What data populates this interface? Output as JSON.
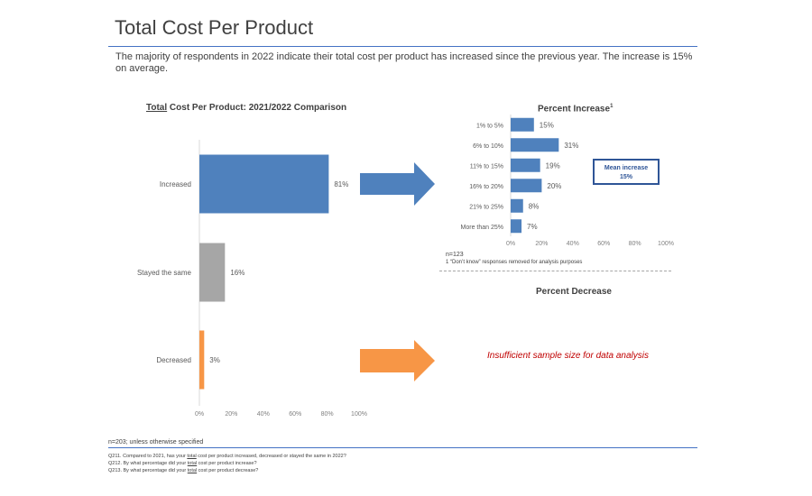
{
  "title": "Total Cost Per Product",
  "subtitle": "The majority of respondents in 2022 indicate their total cost per product has increased since the previous year.  The increase is 15% on average.",
  "left_chart_title_underlined": "Total",
  "left_chart_title_rest": " Cost Per Product: 2021/2022 Comparison",
  "percent_increase_title": "Percent Increase",
  "percent_increase_sup": "1",
  "mean_increase_line1": "Mean increase",
  "mean_increase_line2": "15%",
  "n_increase": "n=123",
  "footnote_increase": "1 “Don’t know” responses removed for analysis purposes",
  "percent_decrease_title": "Percent Decrease",
  "insufficient": "Insufficient sample size for data analysis",
  "n_total": "n=203; unless otherwise specified",
  "q211_a": "Q211. Compared to 2021, has your ",
  "q211_u": "total",
  "q211_b": " cost per product increased, decreased or stayed the same in 2022?",
  "q212_a": "Q212. By what percentage did your ",
  "q212_u": "total",
  "q212_b": " cost per product increase?",
  "q213_a": "Q213. By what percentage did your ",
  "q213_u": "total",
  "q213_b": " cost per product decrease?",
  "colors": {
    "title_rule": "#4472c4",
    "bar_blue": "#4f81bd",
    "bar_gray": "#a6a6a6",
    "bar_orange": "#f79646",
    "arrow_blue": "#4f81bd",
    "arrow_orange": "#f79646",
    "insufficient_text": "#c00000",
    "mean_box": "#2f5597"
  },
  "chart_data": [
    {
      "type": "bar",
      "orientation": "horizontal",
      "title": "Total Cost Per Product: 2021/2022 Comparison",
      "categories": [
        "Increased",
        "Stayed the same",
        "Decreased"
      ],
      "values": [
        81,
        16,
        3
      ],
      "value_labels": [
        "81%",
        "16%",
        "3%"
      ],
      "xlim": [
        0,
        100
      ],
      "x_ticks": [
        "0%",
        "20%",
        "40%",
        "60%",
        "80%",
        "100%"
      ],
      "colors": [
        "#4f81bd",
        "#a6a6a6",
        "#f79646"
      ]
    },
    {
      "type": "bar",
      "orientation": "horizontal",
      "title": "Percent Increase",
      "categories": [
        "1% to 5%",
        "6% to 10%",
        "11% to 15%",
        "16% to 20%",
        "21% to 25%",
        "More than 25%"
      ],
      "values": [
        15,
        31,
        19,
        20,
        8,
        7
      ],
      "value_labels": [
        "15%",
        "31%",
        "19%",
        "20%",
        "8%",
        "7%"
      ],
      "xlim": [
        0,
        100
      ],
      "x_ticks": [
        "0%",
        "20%",
        "40%",
        "60%",
        "80%",
        "100%"
      ],
      "color": "#4f81bd"
    }
  ]
}
